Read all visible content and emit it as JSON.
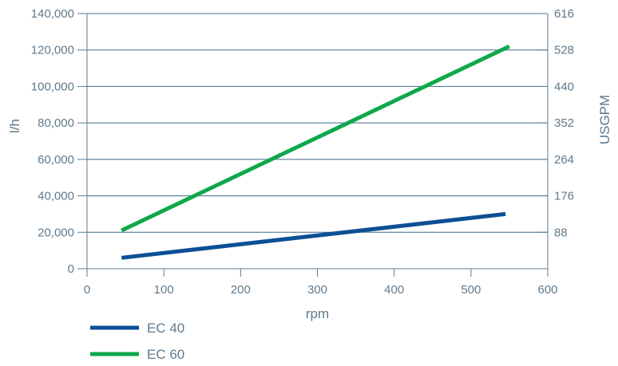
{
  "chart_data": {
    "type": "line",
    "xlabel": "rpm",
    "ylabel": "l/h",
    "y2label": "USGPM",
    "xlim": [
      0,
      600
    ],
    "ylim": [
      0,
      140000
    ],
    "y2lim": [
      0,
      616
    ],
    "x_ticks": [
      0,
      100,
      200,
      300,
      400,
      500,
      600
    ],
    "x_tick_labels": [
      "0",
      "100",
      "200",
      "300",
      "400",
      "500",
      "600"
    ],
    "y_ticks": [
      0,
      20000,
      40000,
      60000,
      80000,
      100000,
      120000,
      140000
    ],
    "y_tick_labels": [
      "0",
      "20,000",
      "40,000",
      "60,000",
      "80,000",
      "100,000",
      "120,000",
      "140,000"
    ],
    "y2_ticks": [
      88,
      176,
      264,
      352,
      440,
      528,
      616
    ],
    "y2_tick_labels": [
      "88",
      "176",
      "264",
      "352",
      "440",
      "528",
      "616"
    ],
    "grid": "horizontal",
    "legend_position": "bottom-left",
    "series": [
      {
        "name": "EC 40",
        "color": "#0d4f94",
        "x": [
          45,
          545
        ],
        "y": [
          6000,
          30000
        ]
      },
      {
        "name": "EC 60",
        "color": "#0ea84a",
        "x": [
          45,
          550
        ],
        "y": [
          21000,
          122000
        ]
      }
    ]
  }
}
